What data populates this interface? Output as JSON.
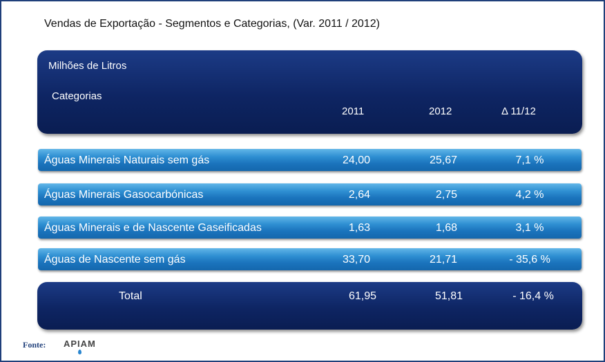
{
  "title": "Vendas de Exportação - Segmentos e Categorias, (Var. 2011 / 2012)",
  "header": {
    "unit": "Milhões de Litros",
    "categories_label": "Categorias",
    "col_2011": "2011",
    "col_2012": "2012",
    "col_delta": "Δ 11/12"
  },
  "rows": [
    {
      "label": "Águas Minerais Naturais sem gás",
      "v2011": "24,00",
      "v2012": "25,67",
      "delta": "7,1 %"
    },
    {
      "label": "Águas Minerais Gasocarbónicas",
      "v2011": "2,64",
      "v2012": "2,75",
      "delta": "4,2 %"
    },
    {
      "label": "Águas Minerais e de Nascente Gaseificadas",
      "v2011": "1,63",
      "v2012": "1,68",
      "delta": "3,1 %"
    },
    {
      "label": "Águas de Nascente sem gás",
      "v2011": "33,70",
      "v2012": "21,71",
      "delta": "- 35,6 %"
    }
  ],
  "total": {
    "label": "Total",
    "v2011": "61,95",
    "v2012": "51,81",
    "delta": "- 16,4 %"
  },
  "footer": {
    "source_label": "Fonte:",
    "logo_text": "APIAM"
  },
  "colors": {
    "panel_dark": "#0e2563",
    "row_blue": "#2f8fd2",
    "frame": "#1f3f7a"
  }
}
